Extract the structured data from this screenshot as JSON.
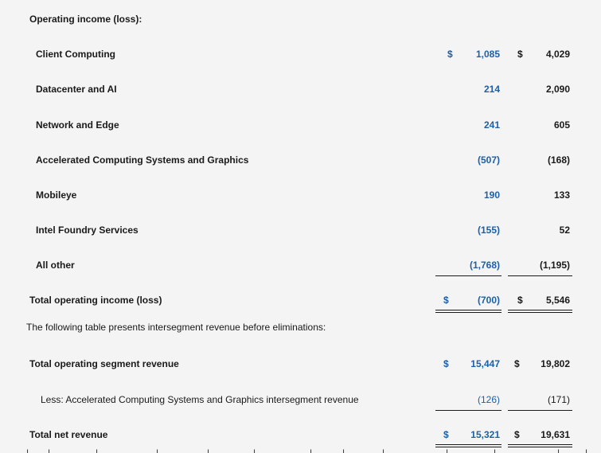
{
  "header": "Operating income (loss):",
  "rows": [
    {
      "label": "Client Computing",
      "cur": "1,085",
      "prior": "4,029",
      "dollar": "$"
    },
    {
      "label": "Datacenter and AI",
      "cur": "214",
      "prior": "2,090"
    },
    {
      "label": "Network and Edge",
      "cur": "241",
      "prior": "605"
    },
    {
      "label": "Accelerated Computing Systems and Graphics",
      "cur": "(507)",
      "prior": "(168)"
    },
    {
      "label": "Mobileye",
      "cur": "190",
      "prior": "133"
    },
    {
      "label": "Intel Foundry Services",
      "cur": "(155)",
      "prior": "52"
    },
    {
      "label": "All other",
      "cur": "(1,768)",
      "prior": "(1,195)"
    }
  ],
  "total_operating": {
    "label": "Total operating income (loss)",
    "dollar": "$",
    "cur": "(700)",
    "prior": "5,546"
  },
  "intro": "The following table presents intersegment revenue before eliminations:",
  "segment_revenue": {
    "label": "Total operating segment revenue",
    "dollar": "$",
    "cur": "15,447",
    "prior": "19,802"
  },
  "less_row": {
    "label": "Less:  Accelerated Computing Systems and Graphics intersegment revenue",
    "cur": "(126)",
    "prior": "(171)"
  },
  "net_revenue": {
    "label": "Total net revenue",
    "dollar": "$",
    "cur": "15,321",
    "prior": "19,631"
  },
  "colors": {
    "current_year": "#1e5fa8",
    "text": "#1a1a1a",
    "background": "#f4f4f4"
  }
}
